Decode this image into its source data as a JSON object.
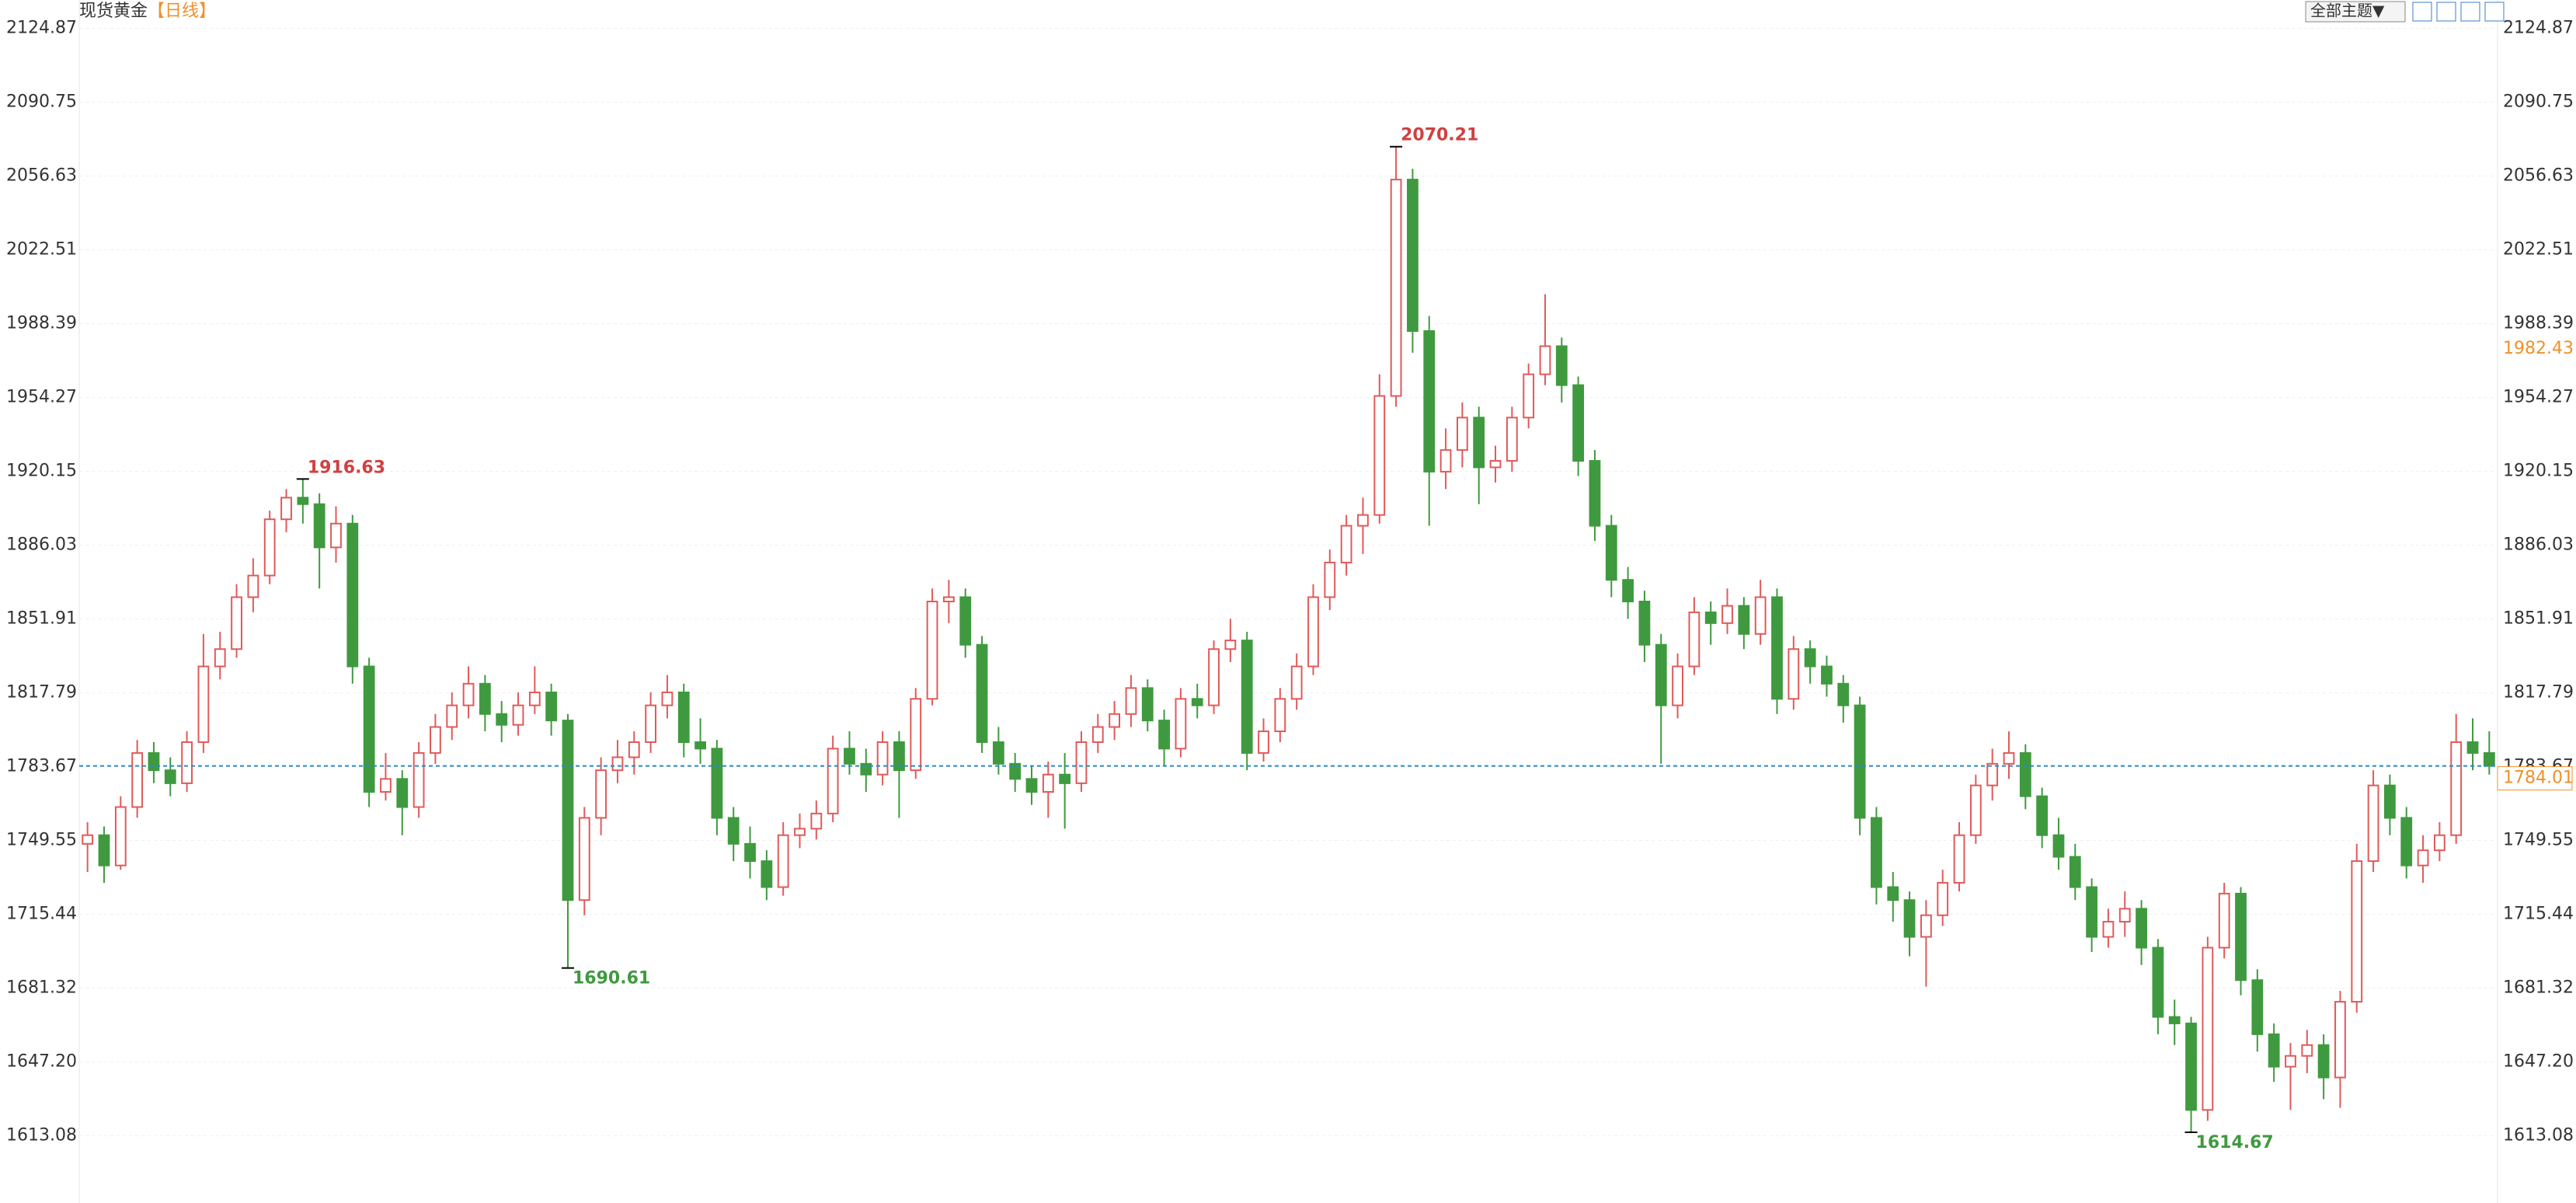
{
  "chart_data": {
    "type": "candlestick",
    "title": "现货黄金",
    "period": "【日线】",
    "theme_button": "全部主题▼",
    "ylim": [
      1582,
      2138
    ],
    "yticks": [
      2124.87,
      2090.75,
      2056.63,
      2022.51,
      1988.39,
      1954.27,
      1920.15,
      1886.03,
      1851.91,
      1817.79,
      1783.67,
      1749.55,
      1715.44,
      1681.32,
      {
        "value": 1647.2,
        "label": "1647.20"
      },
      1613.08
    ],
    "grid": true,
    "up_color": "#e05a5a",
    "down_color": "#3f9a3f",
    "indicator_value": 1982.43,
    "ohlc": [
      [
        1748,
        1758,
        1735,
        1752
      ],
      [
        1752,
        1756,
        1730,
        1738
      ],
      [
        1738,
        1770,
        1736,
        1765
      ],
      [
        1765,
        1796,
        1760,
        1790
      ],
      [
        1790,
        1795,
        1776,
        1782
      ],
      [
        1782,
        1788,
        1770,
        1776
      ],
      [
        1776,
        1800,
        1772,
        1795
      ],
      [
        1795,
        1845,
        1790,
        1830
      ],
      [
        1830,
        1846,
        1824,
        1838
      ],
      [
        1838,
        1868,
        1834,
        1862
      ],
      [
        1862,
        1880,
        1855,
        1872
      ],
      [
        1872,
        1902,
        1868,
        1898
      ],
      [
        1898,
        1912,
        1892,
        1908
      ],
      [
        1908,
        1916.63,
        1896,
        1905
      ],
      [
        1905,
        1910,
        1866,
        1885
      ],
      [
        1885,
        1904,
        1878,
        1896
      ],
      [
        1896,
        1900,
        1822,
        1830
      ],
      [
        1830,
        1834,
        1765,
        1772
      ],
      [
        1772,
        1790,
        1768,
        1778
      ],
      [
        1778,
        1782,
        1752,
        1765
      ],
      [
        1765,
        1795,
        1760,
        1790
      ],
      [
        1790,
        1808,
        1785,
        1802
      ],
      [
        1802,
        1818,
        1796,
        1812
      ],
      [
        1812,
        1830,
        1806,
        1822
      ],
      [
        1822,
        1826,
        1800,
        1808
      ],
      [
        1808,
        1814,
        1795,
        1803
      ],
      [
        1803,
        1818,
        1798,
        1812
      ],
      [
        1812,
        1830,
        1808,
        1818
      ],
      [
        1818,
        1822,
        1798,
        1805
      ],
      [
        1805,
        1808,
        1690.61,
        1722
      ],
      [
        1722,
        1765,
        1715,
        1760
      ],
      [
        1760,
        1788,
        1752,
        1782
      ],
      [
        1782,
        1796,
        1776,
        1788
      ],
      [
        1788,
        1800,
        1780,
        1795
      ],
      [
        1795,
        1818,
        1790,
        1812
      ],
      [
        1812,
        1826,
        1806,
        1818
      ],
      [
        1818,
        1822,
        1788,
        1795
      ],
      [
        1795,
        1806,
        1785,
        1792
      ],
      [
        1792,
        1796,
        1752,
        1760
      ],
      [
        1760,
        1765,
        1740,
        1748
      ],
      [
        1748,
        1756,
        1732,
        1740
      ],
      [
        1740,
        1745,
        1722,
        1728
      ],
      [
        1728,
        1758,
        1724,
        1752
      ],
      [
        1752,
        1762,
        1746,
        1755
      ],
      [
        1755,
        1768,
        1750,
        1762
      ],
      [
        1762,
        1798,
        1758,
        1792
      ],
      [
        1792,
        1800,
        1780,
        1785
      ],
      [
        1785,
        1792,
        1772,
        1780
      ],
      [
        1780,
        1800,
        1775,
        1795
      ],
      [
        1795,
        1800,
        1760,
        1782
      ],
      [
        1782,
        1820,
        1778,
        1815
      ],
      [
        1815,
        1866,
        1812,
        1860
      ],
      [
        1860,
        1870,
        1850,
        1862
      ],
      [
        1862,
        1866,
        1834,
        1840
      ],
      [
        1840,
        1844,
        1790,
        1795
      ],
      [
        1795,
        1802,
        1780,
        1785
      ],
      [
        1785,
        1790,
        1772,
        1778
      ],
      [
        1778,
        1784,
        1766,
        1772
      ],
      [
        1772,
        1786,
        1760,
        1780
      ],
      [
        1780,
        1790,
        1755,
        1776
      ],
      [
        1776,
        1800,
        1772,
        1795
      ],
      [
        1795,
        1808,
        1790,
        1802
      ],
      [
        1802,
        1814,
        1796,
        1808
      ],
      [
        1808,
        1826,
        1802,
        1820
      ],
      [
        1820,
        1824,
        1800,
        1805
      ],
      [
        1805,
        1810,
        1784,
        1792
      ],
      [
        1792,
        1820,
        1788,
        1815
      ],
      [
        1815,
        1822,
        1806,
        1812
      ],
      [
        1812,
        1842,
        1808,
        1838
      ],
      [
        1838,
        1852,
        1832,
        1842
      ],
      [
        1842,
        1846,
        1782,
        1790
      ],
      [
        1790,
        1806,
        1786,
        1800
      ],
      [
        1800,
        1820,
        1795,
        1815
      ],
      [
        1815,
        1836,
        1810,
        1830
      ],
      [
        1830,
        1868,
        1826,
        1862
      ],
      [
        1862,
        1884,
        1856,
        1878
      ],
      [
        1878,
        1900,
        1872,
        1895
      ],
      [
        1895,
        1908,
        1882,
        1900
      ],
      [
        1900,
        1965,
        1896,
        1955
      ],
      [
        1955,
        2070.21,
        1950,
        2055
      ],
      [
        2055,
        2060,
        1975,
        1985
      ],
      [
        1985,
        1992,
        1895,
        1920
      ],
      [
        1920,
        1940,
        1912,
        1930
      ],
      [
        1930,
        1952,
        1922,
        1945
      ],
      [
        1945,
        1950,
        1905,
        1922
      ],
      [
        1922,
        1932,
        1915,
        1925
      ],
      [
        1925,
        1950,
        1920,
        1945
      ],
      [
        1945,
        1970,
        1940,
        1965
      ],
      [
        1965,
        2002,
        1960,
        1978
      ],
      [
        1978,
        1982,
        1952,
        1960
      ],
      [
        1960,
        1964,
        1918,
        1925
      ],
      [
        1925,
        1930,
        1888,
        1895
      ],
      [
        1895,
        1900,
        1862,
        1870
      ],
      [
        1870,
        1876,
        1852,
        1860
      ],
      [
        1860,
        1865,
        1832,
        1840
      ],
      [
        1840,
        1845,
        1785,
        1812
      ],
      [
        1812,
        1836,
        1806,
        1830
      ],
      [
        1830,
        1862,
        1826,
        1855
      ],
      [
        1855,
        1860,
        1840,
        1850
      ],
      [
        1850,
        1866,
        1845,
        1858
      ],
      [
        1858,
        1862,
        1838,
        1845
      ],
      [
        1845,
        1870,
        1840,
        1862
      ],
      [
        1862,
        1866,
        1808,
        1815
      ],
      [
        1815,
        1844,
        1810,
        1838
      ],
      [
        1838,
        1842,
        1822,
        1830
      ],
      [
        1830,
        1835,
        1816,
        1822
      ],
      [
        1822,
        1826,
        1804,
        1812
      ],
      [
        1812,
        1816,
        1752,
        1760
      ],
      [
        1760,
        1765,
        1720,
        1728
      ],
      [
        1728,
        1735,
        1712,
        1722
      ],
      [
        1722,
        1726,
        1696,
        1705
      ],
      [
        1705,
        1722,
        1682,
        1715
      ],
      [
        1715,
        1736,
        1710,
        1730
      ],
      [
        1730,
        1758,
        1726,
        1752
      ],
      [
        1752,
        1780,
        1748,
        1775
      ],
      [
        1775,
        1792,
        1768,
        1785
      ],
      [
        1785,
        1800,
        1778,
        1790
      ],
      [
        1790,
        1794,
        1764,
        1770
      ],
      [
        1770,
        1774,
        1746,
        1752
      ],
      [
        1752,
        1760,
        1736,
        1742
      ],
      [
        1742,
        1748,
        1722,
        1728
      ],
      [
        1728,
        1732,
        1698,
        1705
      ],
      [
        1705,
        1718,
        1700,
        1712
      ],
      [
        1712,
        1726,
        1705,
        1718
      ],
      [
        1718,
        1722,
        1692,
        1700
      ],
      [
        1700,
        1704,
        1660,
        1668
      ],
      [
        1668,
        1676,
        1655,
        1665
      ],
      [
        1665,
        1668,
        1614.67,
        1625
      ],
      [
        1625,
        1705,
        1620,
        1700
      ],
      [
        1700,
        1730,
        1695,
        1725
      ],
      [
        1725,
        1728,
        1678,
        1685
      ],
      [
        1685,
        1690,
        1652,
        1660
      ],
      [
        1660,
        1665,
        1638,
        1645
      ],
      [
        1645,
        1656,
        1625,
        1650
      ],
      [
        1650,
        1662,
        1642,
        1655
      ],
      [
        1655,
        1660,
        1630,
        1640
      ],
      [
        1640,
        1680,
        1626,
        1675
      ],
      [
        1675,
        1748,
        1670,
        1740
      ],
      [
        1740,
        1782,
        1735,
        1775
      ],
      [
        1775,
        1780,
        1752,
        1760
      ],
      [
        1760,
        1765,
        1732,
        1738
      ],
      [
        1738,
        1752,
        1730,
        1745
      ],
      [
        1745,
        1758,
        1740,
        1752
      ],
      [
        1752,
        1808,
        1748,
        1795
      ],
      [
        1795,
        1806,
        1782,
        1790
      ],
      [
        1790,
        1800,
        1780,
        1784.01
      ]
    ]
  }
}
